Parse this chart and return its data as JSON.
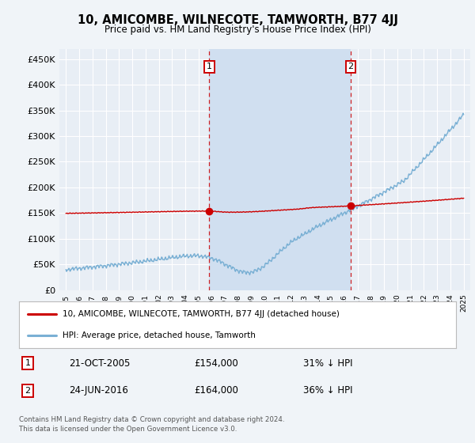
{
  "title": "10, AMICOMBE, WILNECOTE, TAMWORTH, B77 4JJ",
  "subtitle": "Price paid vs. HM Land Registry's House Price Index (HPI)",
  "bg_color": "#f0f4f8",
  "plot_bg_color": "#e8eef5",
  "shade_color": "#d0dff0",
  "grid_color": "#ffffff",
  "red_line_color": "#cc0000",
  "blue_line_color": "#7ab0d4",
  "marker1_x": 2005.81,
  "marker2_x": 2016.48,
  "marker1_y": 154000,
  "marker2_y": 164000,
  "marker1_date": "21-OCT-2005",
  "marker1_price": "£154,000",
  "marker1_hpi": "31% ↓ HPI",
  "marker2_date": "24-JUN-2016",
  "marker2_price": "£164,000",
  "marker2_hpi": "36% ↓ HPI",
  "legend_line1": "10, AMICOMBE, WILNECOTE, TAMWORTH, B77 4JJ (detached house)",
  "legend_line2": "HPI: Average price, detached house, Tamworth",
  "footer_line1": "Contains HM Land Registry data © Crown copyright and database right 2024.",
  "footer_line2": "This data is licensed under the Open Government Licence v3.0.",
  "ylim": [
    0,
    470000
  ],
  "xlim_start": 1994.5,
  "xlim_end": 2025.5
}
